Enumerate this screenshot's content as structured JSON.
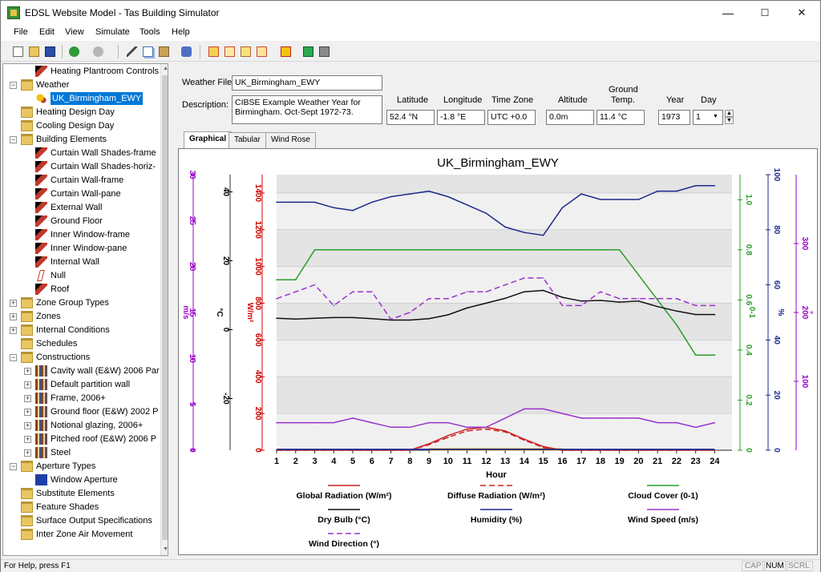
{
  "window": {
    "title": "EDSL Website Model - Tas Building Simulator",
    "minimize": "—",
    "maximize": "☐",
    "close": "✕"
  },
  "menu": [
    "File",
    "Edit",
    "View",
    "Simulate",
    "Tools",
    "Help"
  ],
  "tree": [
    {
      "label": "Heating Plantroom Controls",
      "level": 1,
      "icon": "plantroom-icon",
      "expander": ""
    },
    {
      "label": "Weather",
      "level": 0,
      "icon": "folder-icon",
      "expander": "−"
    },
    {
      "label": "UK_Birmingham_EWY",
      "level": 1,
      "icon": "weather-icon",
      "expander": "",
      "selected": true
    },
    {
      "label": "Heating Design Day",
      "level": 0,
      "icon": "folder-icon",
      "expander": ""
    },
    {
      "label": "Cooling Design Day",
      "level": 0,
      "icon": "folder-icon",
      "expander": ""
    },
    {
      "label": "Building Elements",
      "level": 0,
      "icon": "folder-icon",
      "expander": "−"
    },
    {
      "label": "Curtain Wall Shades-frame",
      "level": 1,
      "icon": "element-icon",
      "expander": ""
    },
    {
      "label": "Curtain Wall Shades-horiz-",
      "level": 1,
      "icon": "element-icon",
      "expander": ""
    },
    {
      "label": "Curtain Wall-frame",
      "level": 1,
      "icon": "element-icon",
      "expander": ""
    },
    {
      "label": "Curtain Wall-pane",
      "level": 1,
      "icon": "element-icon",
      "expander": ""
    },
    {
      "label": "External Wall",
      "level": 1,
      "icon": "element-icon",
      "expander": ""
    },
    {
      "label": "Ground Floor",
      "level": 1,
      "icon": "element-icon",
      "expander": ""
    },
    {
      "label": "Inner Window-frame",
      "level": 1,
      "icon": "element-icon",
      "expander": ""
    },
    {
      "label": "Inner Window-pane",
      "level": 1,
      "icon": "element-icon",
      "expander": ""
    },
    {
      "label": "Internal Wall",
      "level": 1,
      "icon": "element-icon",
      "expander": ""
    },
    {
      "label": "Null",
      "level": 1,
      "icon": "null-element-icon",
      "expander": ""
    },
    {
      "label": "Roof",
      "level": 1,
      "icon": "element-icon",
      "expander": ""
    },
    {
      "label": "Zone Group Types",
      "level": 0,
      "icon": "folder-icon",
      "expander": "+"
    },
    {
      "label": "Zones",
      "level": 0,
      "icon": "folder-icon",
      "expander": "+"
    },
    {
      "label": "Internal Conditions",
      "level": 0,
      "icon": "folder-icon",
      "expander": "+"
    },
    {
      "label": "Schedules",
      "level": 0,
      "icon": "folder-icon",
      "expander": ""
    },
    {
      "label": "Constructions",
      "level": 0,
      "icon": "folder-icon",
      "expander": "−"
    },
    {
      "label": "Cavity wall (E&W) 2006 Par",
      "level": 1,
      "icon": "construction-icon",
      "expander": "+"
    },
    {
      "label": "Default partition wall",
      "level": 1,
      "icon": "construction-icon",
      "expander": "+"
    },
    {
      "label": "Frame, 2006+",
      "level": 1,
      "icon": "construction-icon",
      "expander": "+"
    },
    {
      "label": "Ground floor (E&W) 2002 P",
      "level": 1,
      "icon": "construction-icon",
      "expander": "+"
    },
    {
      "label": "Notional glazing, 2006+",
      "level": 1,
      "icon": "construction-icon",
      "expander": "+"
    },
    {
      "label": "Pitched roof (E&W) 2006 P",
      "level": 1,
      "icon": "construction-icon",
      "expander": "+"
    },
    {
      "label": "Steel",
      "level": 1,
      "icon": "construction-icon",
      "expander": "+"
    },
    {
      "label": "Aperture Types",
      "level": 0,
      "icon": "folder-icon",
      "expander": "−"
    },
    {
      "label": "Window Aperture",
      "level": 1,
      "icon": "aperture-icon",
      "expander": ""
    },
    {
      "label": "Substitute Elements",
      "level": 0,
      "icon": "folder-icon",
      "expander": ""
    },
    {
      "label": "Feature Shades",
      "level": 0,
      "icon": "folder-icon",
      "expander": ""
    },
    {
      "label": "Surface Output Specifications",
      "level": 0,
      "icon": "folder-icon",
      "expander": ""
    },
    {
      "label": "Inter Zone Air Movement",
      "level": 0,
      "icon": "folder-icon",
      "expander": ""
    }
  ],
  "weather": {
    "file_label": "Weather File:",
    "file_value": "UK_Birmingham_EWY",
    "description_label": "Description:",
    "description_value": "CIBSE Example Weather Year for Birmingham.  Oct-Sept 1972-73.",
    "latitude_label": "Latitude",
    "latitude_value": "52.4 °N",
    "longitude_label": "Longitude",
    "longitude_value": "-1.8 °E",
    "timezone_label": "Time Zone",
    "timezone_value": "UTC +0.0",
    "altitude_label": "Altitude",
    "altitude_value": "0.0m",
    "ground_temp_label_1": "Ground",
    "ground_temp_label_2": "Temp.",
    "ground_temp_value": "11.4 °C",
    "year_label": "Year",
    "year_value": "1973",
    "day_label": "Day",
    "day_value": "1"
  },
  "tabs": [
    "Graphical",
    "Tabular",
    "Wind Rose"
  ],
  "colors": {
    "global": "#cc2222",
    "diffuse": "#cc2222",
    "cloud": "#2a9d2a",
    "dry_bulb": "#111111",
    "humidity": "#1c2a8c",
    "wind_speed": "#9933cc",
    "wind_dir": "#9933cc",
    "wx_axis": "#9900cc",
    "rad_axis": "#cc0000",
    "orange": "#e0a000"
  },
  "chart_data": {
    "type": "line",
    "title": "UK_Birmingham_EWY",
    "xlabel": "Hour",
    "x": [
      1,
      2,
      3,
      4,
      5,
      6,
      7,
      8,
      9,
      10,
      11,
      12,
      13,
      14,
      15,
      16,
      17,
      18,
      19,
      20,
      21,
      22,
      23,
      24
    ],
    "axes": [
      {
        "id": "wind_speed",
        "label": "m/s",
        "ylim": [
          0,
          30
        ],
        "ticks": [
          "0",
          "5",
          "10",
          "15",
          "20",
          "25",
          "30"
        ]
      },
      {
        "id": "dry_bulb",
        "label": "°C",
        "ylim": [
          -35,
          45
        ],
        "ticks": [
          "-20",
          "0",
          "20",
          "40"
        ]
      },
      {
        "id": "radiation",
        "label": "W/m²",
        "ylim": [
          0,
          1500
        ],
        "ticks": [
          "0",
          "200",
          "400",
          "600",
          "800",
          "1000",
          "1200",
          "1400"
        ]
      },
      {
        "id": "cloud",
        "label": "0-1",
        "ylim": [
          0,
          1.1
        ],
        "ticks": [
          "0",
          "0.2",
          "0.4",
          "0.6",
          "0.8",
          "1.0"
        ]
      },
      {
        "id": "humidity",
        "label": "%",
        "ylim": [
          0,
          100
        ],
        "ticks": [
          "0",
          "20",
          "40",
          "60",
          "80",
          "100"
        ]
      },
      {
        "id": "wind_dir",
        "label": "°",
        "ylim": [
          0,
          400
        ],
        "ticks": [
          "100",
          "200",
          "300"
        ]
      }
    ],
    "series": [
      {
        "name": "Global Radiation (W/m²)",
        "axis": "radiation",
        "style": "solid",
        "color": "#cc2222",
        "values": [
          0,
          0,
          0,
          0,
          0,
          0,
          0,
          0,
          35,
          80,
          115,
          125,
          105,
          60,
          20,
          0,
          0,
          0,
          0,
          0,
          0,
          0,
          0,
          0
        ]
      },
      {
        "name": "Diffuse Radiation (W/m²)",
        "axis": "radiation",
        "style": "dashed",
        "color": "#cc2222",
        "values": [
          0,
          0,
          0,
          0,
          0,
          0,
          0,
          0,
          30,
          70,
          105,
          115,
          100,
          55,
          15,
          0,
          0,
          0,
          0,
          0,
          0,
          0,
          0,
          0
        ]
      },
      {
        "name": "Cloud Cover (0-1)",
        "axis": "cloud",
        "style": "solid",
        "color": "#2a9d2a",
        "values": [
          0.68,
          0.68,
          0.8,
          0.8,
          0.8,
          0.8,
          0.8,
          0.8,
          0.8,
          0.8,
          0.8,
          0.8,
          0.8,
          0.8,
          0.8,
          0.8,
          0.8,
          0.8,
          0.8,
          0.7,
          0.6,
          0.5,
          0.38,
          0.38
        ]
      },
      {
        "name": "Dry Bulb (°C)",
        "axis": "dry_bulb",
        "style": "solid",
        "color": "#111111",
        "values": [
          3.3,
          3.1,
          3.3,
          3.5,
          3.5,
          3.2,
          2.8,
          2.8,
          3.2,
          4.3,
          6.3,
          7.7,
          9.1,
          11.0,
          11.4,
          9.4,
          8.3,
          8.5,
          8.0,
          8.3,
          6.7,
          5.4,
          4.4,
          4.4
        ]
      },
      {
        "name": "Humidity (%)",
        "axis": "humidity",
        "style": "solid",
        "color": "#1c2a8c",
        "values": [
          90,
          90,
          90,
          88,
          87,
          90,
          92,
          93,
          94,
          92,
          89,
          86,
          81,
          79,
          78,
          88,
          93,
          91,
          91,
          91,
          94,
          94,
          96,
          96
        ]
      },
      {
        "name": "Wind Speed (m/s)",
        "axis": "wind_speed",
        "style": "solid",
        "color": "#9933cc",
        "values": [
          3,
          3,
          3,
          3,
          3.5,
          3,
          2.5,
          2.5,
          3,
          3,
          2.5,
          2.5,
          3.5,
          4.5,
          4.5,
          4,
          3.5,
          3.5,
          3.5,
          3.5,
          3,
          3,
          2.5,
          3
        ]
      },
      {
        "name": "Wind Direction (°)",
        "axis": "wind_dir",
        "style": "dashed",
        "color": "#9933cc",
        "values": [
          220,
          230,
          240,
          210,
          230,
          230,
          190,
          200,
          220,
          220,
          230,
          230,
          240,
          250,
          250,
          210,
          210,
          230,
          220,
          220,
          220,
          220,
          210,
          210
        ]
      }
    ],
    "legend": [
      "Global Radiation (W/m²)",
      "Diffuse Radiation (W/m²)",
      "Cloud Cover (0-1)",
      "Dry Bulb (°C)",
      "Humidity (%)",
      "Wind Speed (m/s)",
      "Wind Direction (°)"
    ],
    "legend_position": "bottom",
    "grid": true
  },
  "status": {
    "help": "For Help, press F1",
    "cap": "CAP",
    "num": "NUM",
    "scrl": "SCRL"
  }
}
